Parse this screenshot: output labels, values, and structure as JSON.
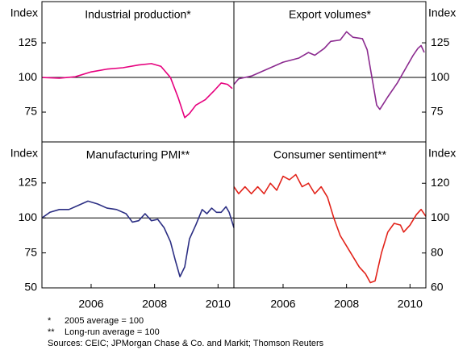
{
  "chart_data": [
    {
      "type": "line",
      "title": "Industrial production*",
      "ylabel": "Index",
      "yaxis_side": "left",
      "xlim": [
        2004.45,
        2010.5
      ],
      "ylim": [
        53.5,
        154.7
      ],
      "yticks": [
        75,
        100,
        125
      ],
      "hline": 100,
      "series": [
        {
          "name": "Industrial production",
          "color": "#e6007e",
          "x": [
            2004.45,
            2005,
            2005.5,
            2006,
            2006.5,
            2007,
            2007.5,
            2007.9,
            2008.2,
            2008.5,
            2008.75,
            2008.95,
            2009.1,
            2009.3,
            2009.6,
            2009.9,
            2010.1,
            2010.3,
            2010.45
          ],
          "values": [
            100,
            99.5,
            100.5,
            104,
            106,
            107,
            109,
            110,
            108,
            100,
            85,
            71,
            74,
            80,
            84,
            91,
            96,
            95,
            92
          ]
        }
      ]
    },
    {
      "type": "line",
      "title": "Export volumes*",
      "ylabel": "Index",
      "yaxis_side": "right",
      "xlim": [
        2004.45,
        2010.5
      ],
      "ylim": [
        53.5,
        154.7
      ],
      "yticks": [
        75,
        100,
        125
      ],
      "hline": 100,
      "series": [
        {
          "name": "Export volumes",
          "color": "#8b2a8f",
          "x": [
            2004.45,
            2004.6,
            2005,
            2005.5,
            2006,
            2006.5,
            2006.8,
            2007,
            2007.3,
            2007.5,
            2007.8,
            2008,
            2008.2,
            2008.5,
            2008.65,
            2008.8,
            2008.95,
            2009.05,
            2009.3,
            2009.6,
            2009.9,
            2010.1,
            2010.25,
            2010.35,
            2010.45
          ],
          "values": [
            95,
            99,
            101,
            106,
            111,
            114,
            118,
            116,
            121,
            126,
            127,
            133,
            129,
            128,
            120,
            100,
            80,
            77,
            86,
            96,
            108,
            116,
            121,
            123,
            118
          ]
        }
      ]
    },
    {
      "type": "line",
      "title": "Manufacturing PMI**",
      "ylabel": "Index",
      "yaxis_side": "left",
      "xlim": [
        2004.45,
        2010.5
      ],
      "ylim": [
        50,
        154.3
      ],
      "yticks": [
        50,
        75,
        100,
        125
      ],
      "xticks": [
        2006,
        2008,
        2010
      ],
      "hline": 100,
      "series": [
        {
          "name": "Manufacturing PMI",
          "color": "#2b2e83",
          "x": [
            2004.45,
            2004.7,
            2005,
            2005.3,
            2005.6,
            2005.9,
            2006.2,
            2006.5,
            2006.8,
            2007.1,
            2007.3,
            2007.5,
            2007.7,
            2007.9,
            2008.1,
            2008.3,
            2008.5,
            2008.65,
            2008.8,
            2008.95,
            2009.1,
            2009.3,
            2009.5,
            2009.65,
            2009.8,
            2009.95,
            2010.1,
            2010.25,
            2010.35,
            2010.5
          ],
          "values": [
            100,
            104,
            106,
            106,
            109,
            112,
            110,
            107,
            106,
            103,
            97,
            98,
            103,
            98,
            99,
            93,
            83,
            70,
            58,
            65,
            85,
            95,
            106,
            103,
            107,
            104,
            104,
            108,
            104,
            93
          ]
        }
      ]
    },
    {
      "type": "line",
      "title": "Consumer sentiment**",
      "ylabel": "Index",
      "yaxis_side": "right",
      "xlim": [
        2004.45,
        2010.5
      ],
      "ylim": [
        60,
        143.7
      ],
      "yticks": [
        60,
        80,
        100,
        120
      ],
      "xticks": [
        2006,
        2008,
        2010
      ],
      "hline": 100,
      "series": [
        {
          "name": "Consumer sentiment",
          "color": "#e2231a",
          "x": [
            2004.45,
            2004.6,
            2004.8,
            2005,
            2005.2,
            2005.4,
            2005.6,
            2005.8,
            2006,
            2006.2,
            2006.4,
            2006.6,
            2006.8,
            2007,
            2007.2,
            2007.4,
            2007.6,
            2007.8,
            2008,
            2008.2,
            2008.4,
            2008.6,
            2008.75,
            2008.9,
            2009.1,
            2009.3,
            2009.5,
            2009.7,
            2009.8,
            2010,
            2010.2,
            2010.35,
            2010.5
          ],
          "values": [
            118,
            114,
            118,
            114,
            118,
            114,
            120,
            116,
            124,
            122,
            125,
            118,
            120,
            114,
            118,
            112,
            100,
            90,
            84,
            78,
            72,
            68,
            63,
            64,
            80,
            92,
            97,
            96,
            92,
            96,
            102,
            105,
            101
          ]
        }
      ]
    }
  ],
  "notes": [
    "*",
    "2005 average = 100",
    "**",
    "Long-run average = 100",
    "Sources: CEIC; JPMorgan Chase & Co. and Markit; Thomson Reuters"
  ]
}
